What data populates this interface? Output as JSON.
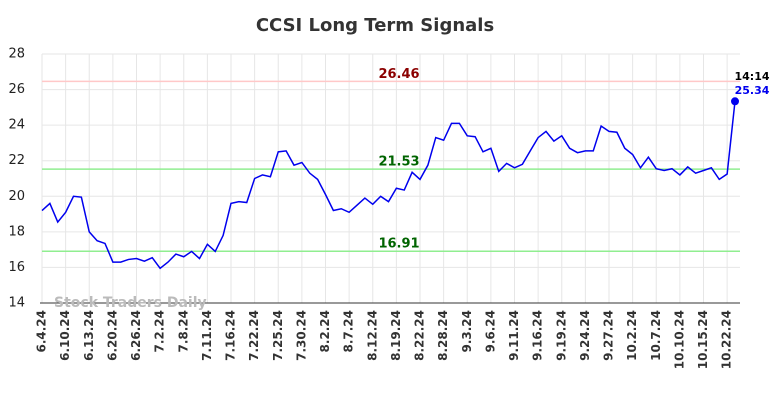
{
  "chart_data": {
    "type": "line",
    "title": "CCSI Long Term Signals",
    "watermark": "Stock Traders Daily",
    "last_time": "14:14",
    "color": "#0000ee",
    "grid": true,
    "ylim": [
      14,
      28
    ],
    "yticks": [
      14,
      16,
      18,
      20,
      22,
      24,
      26,
      28
    ],
    "hlines": [
      {
        "value": 26.46,
        "line_color": "#ffc8c8",
        "text_color": "#8b0000"
      },
      {
        "value": 21.53,
        "line_color": "#90ee90",
        "text_color": "#006400"
      },
      {
        "value": 16.91,
        "line_color": "#90ee90",
        "text_color": "#006400"
      }
    ],
    "categories": [
      "6.4.24",
      null,
      null,
      "6.10.24",
      null,
      null,
      "6.13.24",
      null,
      null,
      "6.20.24",
      null,
      null,
      "6.26.24",
      null,
      null,
      "7.2.24",
      null,
      null,
      "7.8.24",
      null,
      null,
      "7.11.24",
      null,
      null,
      "7.16.24",
      null,
      null,
      "7.22.24",
      null,
      null,
      "7.25.24",
      null,
      null,
      "7.30.24",
      null,
      null,
      "8.2.24",
      null,
      null,
      "8.7.24",
      null,
      null,
      "8.12.24",
      null,
      null,
      "8.19.24",
      null,
      null,
      "8.22.24",
      null,
      null,
      "8.28.24",
      null,
      null,
      "9.3.24",
      null,
      null,
      "9.6.24",
      null,
      null,
      "9.11.24",
      null,
      null,
      "9.16.24",
      null,
      null,
      "9.19.24",
      null,
      null,
      "9.24.24",
      null,
      null,
      "9.27.24",
      null,
      null,
      "10.2.24",
      null,
      null,
      "10.7.24",
      null,
      null,
      "10.10.24",
      null,
      null,
      "10.15.24",
      null,
      null,
      "10.22.24",
      null
    ],
    "values": [
      19.2,
      19.6,
      18.55,
      19.1,
      20.0,
      19.95,
      18.0,
      17.5,
      17.35,
      16.3,
      16.3,
      16.45,
      16.5,
      16.35,
      16.55,
      15.95,
      16.3,
      16.75,
      16.6,
      16.9,
      16.5,
      17.3,
      16.9,
      17.8,
      19.6,
      19.7,
      19.65,
      21.0,
      21.2,
      21.1,
      22.5,
      22.55,
      21.75,
      21.9,
      21.3,
      20.95,
      20.1,
      19.2,
      19.3,
      19.1,
      19.5,
      19.9,
      19.55,
      20.0,
      19.7,
      20.45,
      20.35,
      21.35,
      20.95,
      21.75,
      23.3,
      23.15,
      24.1,
      24.1,
      23.4,
      23.35,
      22.5,
      22.7,
      21.4,
      21.85,
      21.6,
      21.8,
      22.55,
      23.3,
      23.65,
      23.1,
      23.4,
      22.7,
      22.45,
      22.55,
      22.55,
      23.95,
      23.65,
      23.6,
      22.7,
      22.35,
      21.6,
      22.2,
      21.55,
      21.45,
      21.55,
      21.2,
      21.65,
      21.3,
      21.45,
      21.6,
      20.95,
      21.25,
      25.34
    ]
  }
}
